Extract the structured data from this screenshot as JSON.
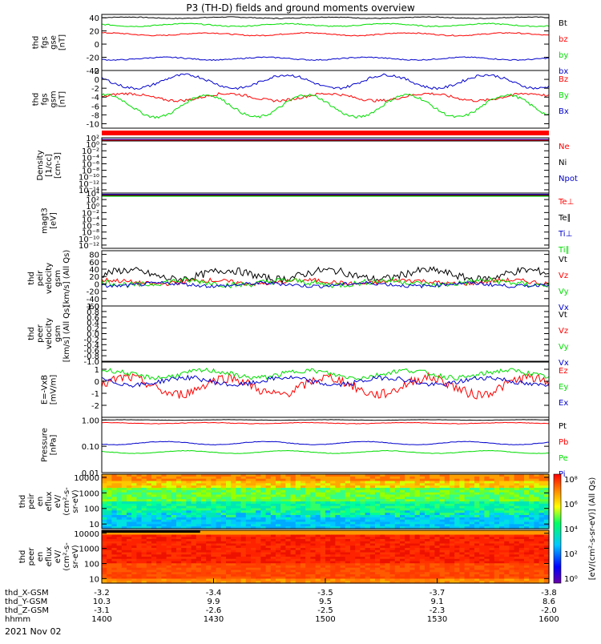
{
  "title": "P3 (TH-D) fields and ground moments overview",
  "date_label": "2021 Nov 02",
  "colors": {
    "black": "#000000",
    "red": "#ff0000",
    "green": "#00dd00",
    "blue": "#0000cc",
    "axis": "#000000"
  },
  "chart_data": [
    {
      "type": "line",
      "id": "fgs_gse",
      "ylabel": [
        "thd",
        "fgs",
        "gse",
        "[nT]"
      ],
      "ylim": [
        -40,
        45
      ],
      "yticks": [
        "40",
        "20",
        "0",
        "-20",
        "-40"
      ],
      "ytick_values": [
        40,
        20,
        0,
        -20,
        -40
      ],
      "series": [
        {
          "name": "Bt",
          "color": "black",
          "base": 40,
          "amp": 1,
          "noise": 0.6
        },
        {
          "name": "bz",
          "color": "red",
          "base": 15,
          "amp": 2,
          "noise": 0.8
        },
        {
          "name": "by",
          "color": "green",
          "base": 29,
          "amp": 2,
          "noise": 0.8
        },
        {
          "name": "bx",
          "color": "blue",
          "base": -22,
          "amp": 2,
          "noise": 0.8
        }
      ]
    },
    {
      "type": "line",
      "id": "fgs_gsm",
      "ylabel": [
        "thd",
        "fgs",
        "gsm",
        "[nT]"
      ],
      "ylim": [
        -11,
        2
      ],
      "yticks": [
        "2",
        "0",
        "-2",
        "-4",
        "-6",
        "-8",
        "-10"
      ],
      "ytick_values": [
        2,
        0,
        -2,
        -4,
        -6,
        -8,
        -10
      ],
      "series": [
        {
          "name": "Bz",
          "color": "red",
          "base": -4,
          "amp": 0.8,
          "noise": 0.3
        },
        {
          "name": "By",
          "color": "green",
          "base": -6,
          "amp": 2.5,
          "noise": 0.3
        },
        {
          "name": "Bx",
          "color": "blue",
          "base": -0.5,
          "amp": 1.5,
          "noise": 0.3
        }
      ]
    },
    {
      "type": "line",
      "id": "density",
      "ylabel": [
        "Density",
        "[1/cc]",
        "[cm-3]"
      ],
      "log": true,
      "ylim_exp": [
        -15,
        2
      ],
      "yticks": [
        "10²",
        "10⁰",
        "10⁻²",
        "10⁻⁴",
        "10⁻⁶",
        "10⁻⁸",
        "10⁻¹⁰",
        "10⁻¹²",
        "10⁻¹⁴"
      ],
      "ytick_values": [
        2,
        0,
        -2,
        -4,
        -6,
        -8,
        -10,
        -12,
        -14
      ],
      "series": [
        {
          "name": "Ne",
          "color": "red"
        },
        {
          "name": "Ni",
          "color": "black"
        },
        {
          "name": "Npot",
          "color": "blue"
        }
      ]
    },
    {
      "type": "line",
      "id": "temp",
      "ylabel": [
        "magt3",
        "[eV]"
      ],
      "log": true,
      "ylim_exp": [
        -13,
        4
      ],
      "yticks": [
        "10⁴",
        "10²",
        "10⁰",
        "10⁻²",
        "10⁻⁴",
        "10⁻⁶",
        "10⁻⁸",
        "10⁻¹⁰",
        "10⁻¹²"
      ],
      "ytick_values": [
        4,
        2,
        0,
        -2,
        -4,
        -6,
        -8,
        -10,
        -12
      ],
      "series": [
        {
          "name": "Te⊥",
          "color": "red"
        },
        {
          "name": "Te∥",
          "color": "black"
        },
        {
          "name": "Ti⊥",
          "color": "blue"
        },
        {
          "name": "Ti∥",
          "color": "green"
        }
      ]
    },
    {
      "type": "line",
      "id": "peir_vel",
      "ylabel": [
        "thd",
        "peir",
        "velocity",
        "gsm",
        "[km/s] (All Qs)"
      ],
      "ylim": [
        -60,
        90
      ],
      "yticks": [
        "80",
        "60",
        "40",
        "20",
        "0",
        "-20",
        "-40",
        "-60"
      ],
      "ytick_values": [
        80,
        60,
        40,
        20,
        0,
        -20,
        -40,
        -60
      ],
      "series": [
        {
          "name": "Vt",
          "color": "black",
          "base": 25,
          "amp": 12,
          "noise": 10
        },
        {
          "name": "Vz",
          "color": "red",
          "base": 5,
          "amp": 5,
          "noise": 6
        },
        {
          "name": "Vy",
          "color": "green",
          "base": 3,
          "amp": 6,
          "noise": 8
        },
        {
          "name": "Vx",
          "color": "blue",
          "base": -2,
          "amp": 4,
          "noise": 5
        }
      ]
    },
    {
      "type": "line",
      "id": "peer_vel",
      "ylabel": [
        "thd",
        "peer",
        "velocity",
        "gsm",
        "[km/s] (All Qs)"
      ],
      "ylim": [
        -1,
        1
      ],
      "yticks": [
        "1.0",
        "0.8",
        "0.6",
        "0.4",
        "0.2",
        "0.0",
        "-0.2",
        "-0.4",
        "-0.6",
        "-0.8",
        "-1.0"
      ],
      "ytick_values": [
        1,
        0.8,
        0.6,
        0.4,
        0.2,
        0,
        -0.2,
        -0.4,
        -0.6,
        -0.8,
        -1
      ],
      "series": [
        {
          "name": "Vt",
          "color": "black"
        },
        {
          "name": "Vz",
          "color": "red"
        },
        {
          "name": "Vy",
          "color": "green"
        },
        {
          "name": "Vx",
          "color": "blue"
        }
      ]
    },
    {
      "type": "line",
      "id": "efield",
      "ylabel": [
        "E=-VxB",
        "[mV/m]"
      ],
      "ylim": [
        -3,
        1.6
      ],
      "yticks": [
        "1",
        "0",
        "-1",
        "-2"
      ],
      "ytick_values": [
        1,
        0,
        -1,
        -2
      ],
      "series": [
        {
          "name": "Ez",
          "color": "red",
          "base": -0.4,
          "amp": 0.7,
          "noise": 0.4
        },
        {
          "name": "Ey",
          "color": "green",
          "base": 0.6,
          "amp": 0.3,
          "noise": 0.2
        },
        {
          "name": "Ex",
          "color": "blue",
          "base": 0,
          "amp": 0.3,
          "noise": 0.2
        }
      ]
    },
    {
      "type": "line",
      "id": "pressure",
      "ylabel": [
        "Pressure",
        "[nPa]"
      ],
      "log": true,
      "ylim_exp": [
        -2,
        0.1
      ],
      "yticks": [
        "1.00",
        "0.10",
        "0.01"
      ],
      "ytick_values": [
        0,
        -1,
        -2
      ],
      "series": [
        {
          "name": "Pt",
          "color": "black",
          "base": 0.0,
          "amp": 0.01,
          "noise": 0.005
        },
        {
          "name": "Pb",
          "color": "red",
          "base": -0.12,
          "amp": 0.02,
          "noise": 0.01
        },
        {
          "name": "Pe",
          "color": "green",
          "base": -1.22,
          "amp": 0.05,
          "noise": 0.01
        },
        {
          "name": "Pi",
          "color": "blue",
          "base": -0.88,
          "amp": 0.06,
          "noise": 0.01
        }
      ]
    },
    {
      "type": "heatmap",
      "id": "peir_flux",
      "ylabel": [
        "thd",
        "peir",
        "en",
        "eflux",
        "eV/",
        "(cm²-s-",
        "sr-eV)"
      ],
      "yticks": [
        "10000",
        "1000",
        "100",
        "10"
      ],
      "ytick_values": [
        4,
        3,
        2,
        1
      ],
      "ylim_exp": [
        0.7,
        4.2
      ]
    },
    {
      "type": "heatmap",
      "id": "peer_flux",
      "ylabel": [
        "thd",
        "peer",
        "en",
        "eflux",
        "eV/",
        "(cm²-s-",
        "sr-eV)"
      ],
      "yticks": [
        "10000",
        "1000",
        "100",
        "10"
      ],
      "ytick_values": [
        4,
        3,
        2,
        1
      ],
      "ylim_exp": [
        0.7,
        4.2
      ]
    }
  ],
  "colorbar": {
    "ticks": [
      "10⁸",
      "10⁶",
      "10⁴",
      "10²",
      "10⁰"
    ],
    "label": "[eV/(cm²-s-sr-eV)] (All Qs)"
  },
  "x_axis": {
    "rows": [
      {
        "label": "thd_X-GSM",
        "values": [
          "-3.2",
          "-3.4",
          "-3.5",
          "-3.7",
          "-3.8"
        ]
      },
      {
        "label": "thd_Y-GSM",
        "values": [
          "10.3",
          "9.9",
          "9.5",
          "9.1",
          "8.6"
        ]
      },
      {
        "label": "thd_Z-GSM",
        "values": [
          "-3.1",
          "-2.6",
          "-2.5",
          "-2.3",
          "-2.0"
        ]
      },
      {
        "label": "hhmm",
        "values": [
          "1400",
          "1430",
          "1500",
          "1530",
          "1600"
        ]
      }
    ]
  }
}
